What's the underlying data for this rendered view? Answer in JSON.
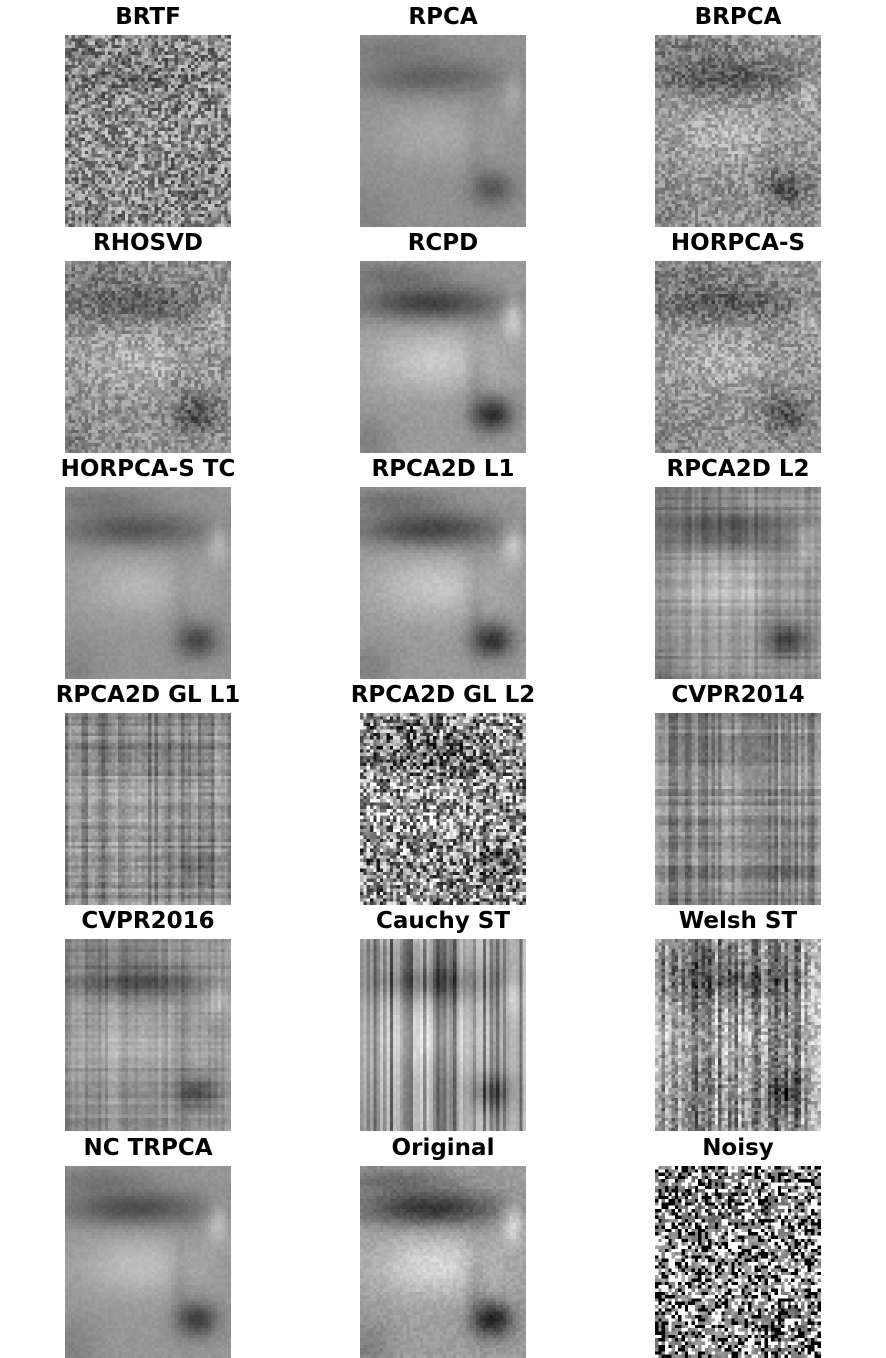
{
  "figure": {
    "panels": [
      {
        "title": "BRTF",
        "style": "noise-light",
        "face": 0.15
      },
      {
        "title": "RPCA",
        "style": "blur",
        "face": 0.45
      },
      {
        "title": "BRPCA",
        "style": "noise-mid",
        "face": 0.55
      },
      {
        "title": "RHOSVD",
        "style": "noise-mid",
        "face": 0.55
      },
      {
        "title": "RCPD",
        "style": "clean",
        "face": 0.85
      },
      {
        "title": "HORPCA-S",
        "style": "noise-mid",
        "face": 0.55
      },
      {
        "title": "HORPCA-S TC",
        "style": "blur",
        "face": 0.6
      },
      {
        "title": "RPCA2D L1",
        "style": "clean",
        "face": 0.8
      },
      {
        "title": "RPCA2D L2",
        "style": "grid-blur",
        "face": 0.65
      },
      {
        "title": "RPCA2D GL L1",
        "style": "grid",
        "face": 0.2
      },
      {
        "title": "RPCA2D GL L2",
        "style": "noise-strong",
        "face": 0.4
      },
      {
        "title": "CVPR2014",
        "style": "grid",
        "face": 0.15
      },
      {
        "title": "CVPR2016",
        "style": "grid-blur",
        "face": 0.55
      },
      {
        "title": "Cauchy ST",
        "style": "streaks",
        "face": 0.55
      },
      {
        "title": "Welsh ST",
        "style": "streaks-noise",
        "face": 0.5
      },
      {
        "title": "NC TRPCA",
        "style": "blur",
        "face": 0.7
      },
      {
        "title": "Original",
        "style": "original",
        "face": 1.0
      },
      {
        "title": "Noisy",
        "style": "salt-pepper",
        "face": 0.35
      }
    ]
  }
}
